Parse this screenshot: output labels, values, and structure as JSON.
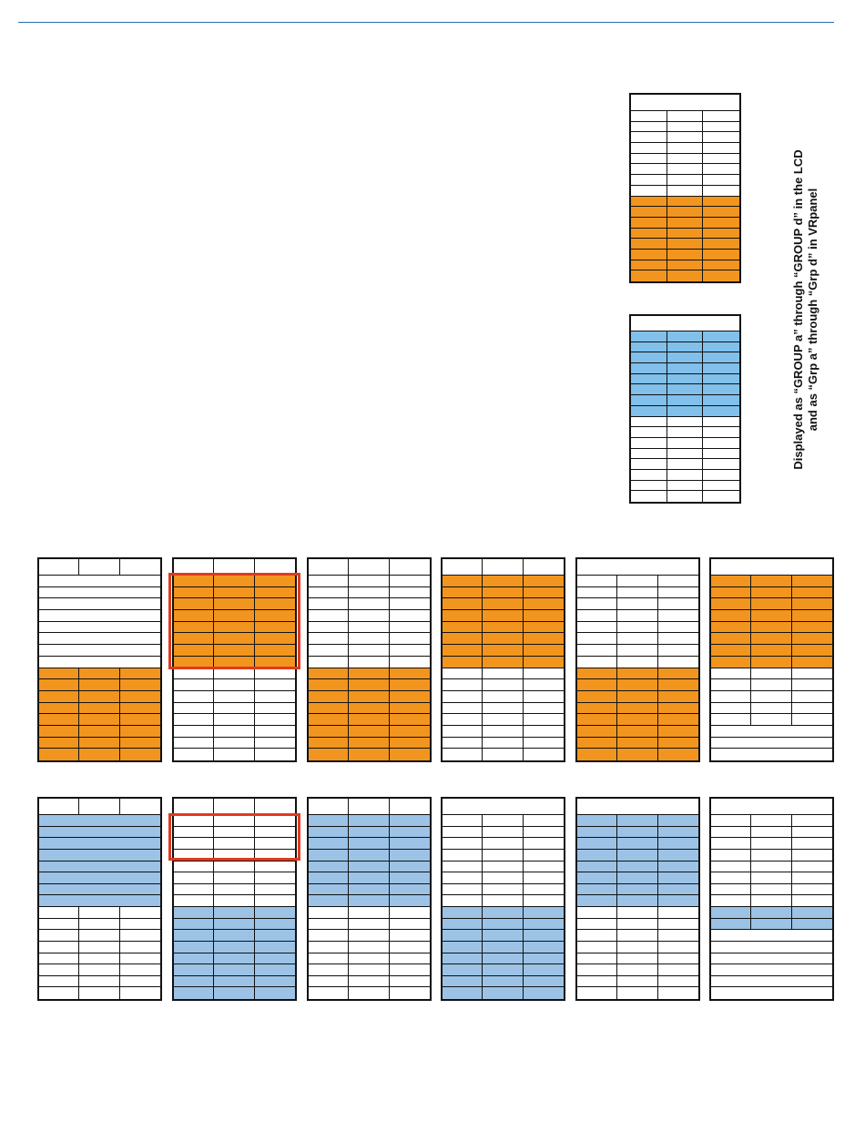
{
  "note": {
    "line1": "Displayed as “GROUP a” through “GROUP d” in the LCD",
    "line2": "and as “Grp a” through “Grp d” in VRpanel"
  },
  "colors": {
    "orange": "#f2951f",
    "blue": "#9cc3e6",
    "blue_strong": "#80c0ea",
    "highlight": "#e03a1e",
    "rule": "#2a6fb3"
  }
}
